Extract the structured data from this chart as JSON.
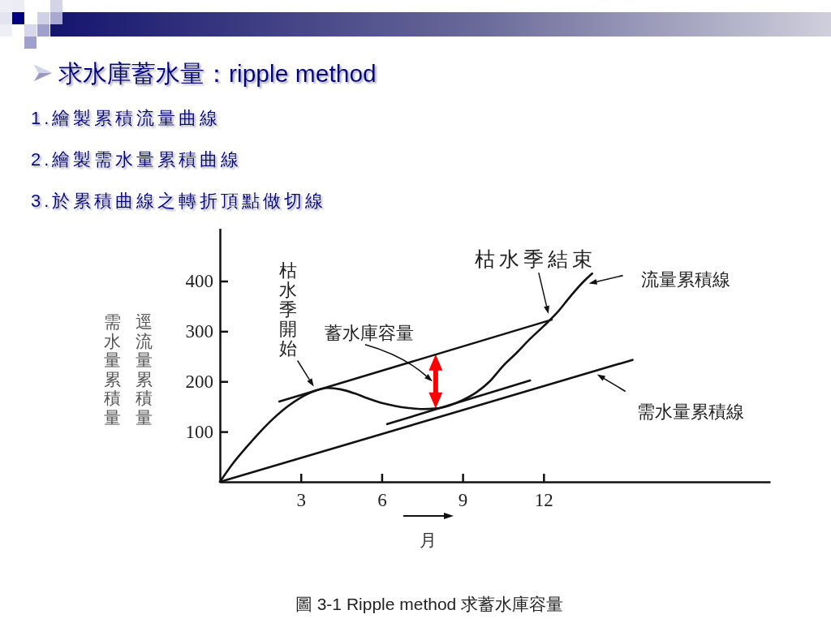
{
  "chart_data": {
    "type": "line",
    "title": "求水庫蓄水量：ripple method",
    "subtitle": "1.繪製累積流量曲線\n2.繪製需水量累積曲線\n3.於累積曲線之轉折頂點做切線",
    "xlabel": "月",
    "ylabel": "逕流量累積量",
    "xlim": [
      0,
      20.4
    ],
    "ylim": [
      0,
      505
    ],
    "xticks": [
      3,
      6,
      9,
      12
    ],
    "yticks": [
      100,
      200,
      300,
      400
    ],
    "line_style": "solid",
    "series": [
      {
        "name": "流量累積線",
        "color": "#111111",
        "x": [
          0,
          0.5,
          1,
          1.5,
          2,
          2.5,
          3,
          3.5,
          4,
          4.5,
          5,
          5.5,
          6,
          6.5,
          7,
          7.5,
          8,
          8.5,
          9,
          9.5,
          10,
          10.5,
          11,
          11.5,
          12,
          12.5,
          13,
          13.5,
          13.8
        ],
        "values": [
          0,
          38,
          70,
          100,
          127,
          150,
          168,
          181,
          187,
          184,
          176,
          166,
          157,
          151,
          147,
          145,
          146,
          152,
          163,
          178,
          200,
          231,
          257,
          285,
          310,
          337,
          370,
          400,
          415
        ]
      },
      {
        "name": "需水量累積線",
        "color": "#111111",
        "x": [
          0,
          15.3
        ],
        "values": [
          0,
          243
        ]
      },
      {
        "color": "#111111",
        "x": [
          2.2,
          12.3
        ],
        "values": [
          160,
          323
        ]
      },
      {
        "color": "#111111",
        "x": [
          6.2,
          11.5
        ],
        "values": [
          115,
          202
        ]
      }
    ],
    "annotations": [
      "需水量累積量",
      {
        "text": "枯水季開始",
        "x": 3.6,
        "y": 185
      },
      {
        "text": "蓄水庫容量",
        "x": 8,
        "y": 254
      },
      {
        "text": "枯水季結束",
        "x": 12.3,
        "y": 323
      },
      "圖 3-1 Ripple method 求蓄水庫容量"
    ]
  }
}
